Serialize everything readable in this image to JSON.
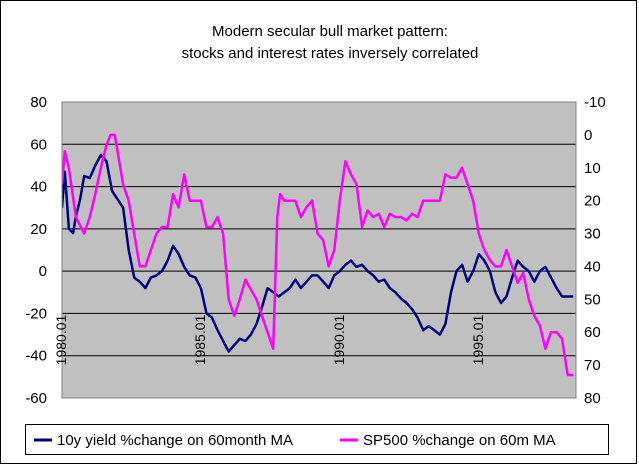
{
  "chart_data": {
    "type": "line",
    "title": [
      "Modern secular bull market pattern:",
      "stocks and interest rates inversely correlated"
    ],
    "x_tick_labels": [
      "1980.01",
      "1985.01",
      "1990.01",
      "1995.01"
    ],
    "x_range": [
      1980.0,
      1998.5
    ],
    "x_tick_positions": [
      1980.0,
      1985.0,
      1990.0,
      1995.0
    ],
    "y_left": {
      "ylim": [
        -60,
        80
      ],
      "ticks": [
        -60,
        -40,
        -20,
        0,
        20,
        40,
        60,
        80
      ],
      "tick_labels": [
        "-60",
        "-40",
        "-20",
        "0",
        "20",
        "40",
        "60",
        "80"
      ]
    },
    "y_right": {
      "ylim": [
        80,
        -10
      ],
      "inverted": true,
      "ticks": [
        -10,
        0,
        10,
        20,
        30,
        40,
        50,
        60,
        70,
        80
      ],
      "tick_labels": [
        "-10",
        "0",
        "10",
        "20",
        "30",
        "40",
        "50",
        "60",
        "70",
        "80"
      ]
    },
    "plot_background": "#c0c0c0",
    "grid": "horizontal",
    "legend_position": "bottom",
    "series": [
      {
        "name": "10y yield %change on 60month MA",
        "axis": "left",
        "color": "#000080",
        "x": [
          1980.0,
          1980.1,
          1980.25,
          1980.4,
          1980.5,
          1980.65,
          1980.8,
          1981.0,
          1981.2,
          1981.4,
          1981.6,
          1981.8,
          1982.0,
          1982.2,
          1982.4,
          1982.6,
          1982.8,
          1983.0,
          1983.2,
          1983.4,
          1983.6,
          1983.8,
          1984.0,
          1984.2,
          1984.4,
          1984.6,
          1984.8,
          1985.0,
          1985.2,
          1985.4,
          1985.6,
          1985.8,
          1986.0,
          1986.2,
          1986.4,
          1986.6,
          1986.8,
          1987.0,
          1987.2,
          1987.4,
          1987.6,
          1987.8,
          1988.0,
          1988.2,
          1988.4,
          1988.6,
          1988.8,
          1989.0,
          1989.2,
          1989.4,
          1989.6,
          1989.8,
          1990.0,
          1990.2,
          1990.4,
          1990.6,
          1990.8,
          1991.0,
          1991.2,
          1991.4,
          1991.6,
          1991.8,
          1992.0,
          1992.2,
          1992.4,
          1992.6,
          1992.8,
          1993.0,
          1993.2,
          1993.4,
          1993.6,
          1993.8,
          1994.0,
          1994.2,
          1994.4,
          1994.6,
          1994.8,
          1995.0,
          1995.2,
          1995.4,
          1995.6,
          1995.8,
          1996.0,
          1996.2,
          1996.4,
          1996.6,
          1996.8,
          1997.0,
          1997.2,
          1997.4,
          1997.6,
          1997.8,
          1998.0,
          1998.2,
          1998.4
        ],
        "y": [
          30,
          47,
          20,
          18,
          26,
          34,
          45,
          44,
          50,
          55,
          52,
          38,
          34,
          30,
          10,
          -3,
          -5,
          -8,
          -3,
          -2,
          0,
          5,
          12,
          8,
          2,
          -2,
          -3,
          -8,
          -20,
          -22,
          -28,
          -33,
          -38,
          -35,
          -32,
          -33,
          -30,
          -25,
          -17,
          -8,
          -10,
          -12,
          -10,
          -8,
          -4,
          -8,
          -5,
          -2,
          -2,
          -5,
          -8,
          -2,
          0,
          3,
          5,
          2,
          3,
          0,
          -2,
          -5,
          -4,
          -8,
          -10,
          -13,
          -15,
          -18,
          -22,
          -28,
          -26,
          -28,
          -30,
          -25,
          -10,
          0,
          3,
          -5,
          0,
          8,
          5,
          0,
          -10,
          -15,
          -12,
          -3,
          5,
          2,
          0,
          -5,
          0,
          2,
          -3,
          -8,
          -12,
          -12,
          -12
        ]
      },
      {
        "name": "SP500 %change on 60m MA",
        "axis": "right",
        "color": "#ff00ff",
        "x": [
          1980.0,
          1980.1,
          1980.25,
          1980.5,
          1980.8,
          1981.0,
          1981.2,
          1981.4,
          1981.6,
          1981.75,
          1981.9,
          1982.0,
          1982.2,
          1982.4,
          1982.6,
          1982.8,
          1983.0,
          1983.2,
          1983.4,
          1983.6,
          1983.8,
          1984.0,
          1984.2,
          1984.4,
          1984.6,
          1984.8,
          1985.0,
          1985.2,
          1985.4,
          1985.6,
          1985.8,
          1986.0,
          1986.2,
          1986.4,
          1986.6,
          1986.8,
          1987.0,
          1987.2,
          1987.4,
          1987.6,
          1987.75,
          1987.85,
          1988.0,
          1988.2,
          1988.4,
          1988.6,
          1988.8,
          1989.0,
          1989.2,
          1989.4,
          1989.6,
          1989.8,
          1990.0,
          1990.2,
          1990.4,
          1990.6,
          1990.8,
          1991.0,
          1991.2,
          1991.4,
          1991.6,
          1991.8,
          1992.0,
          1992.2,
          1992.4,
          1992.6,
          1992.8,
          1993.0,
          1993.2,
          1993.4,
          1993.6,
          1993.8,
          1994.0,
          1994.2,
          1994.4,
          1994.6,
          1994.8,
          1995.0,
          1995.2,
          1995.4,
          1995.6,
          1995.8,
          1996.0,
          1996.2,
          1996.4,
          1996.6,
          1996.8,
          1997.0,
          1997.2,
          1997.4,
          1997.6,
          1997.8,
          1998.0,
          1998.2,
          1998.4
        ],
        "y": [
          15,
          5,
          10,
          25,
          30,
          25,
          18,
          10,
          3,
          0,
          0,
          5,
          15,
          20,
          30,
          40,
          40,
          35,
          30,
          28,
          28,
          18,
          22,
          12,
          20,
          20,
          20,
          28,
          28,
          25,
          30,
          50,
          55,
          50,
          44,
          47,
          50,
          55,
          60,
          65,
          25,
          18,
          20,
          20,
          20,
          25,
          22,
          20,
          30,
          32,
          40,
          35,
          20,
          8,
          12,
          15,
          28,
          23,
          25,
          24,
          28,
          24,
          25,
          25,
          26,
          24,
          25,
          20,
          20,
          20,
          20,
          12,
          13,
          13,
          10,
          15,
          20,
          30,
          35,
          38,
          40,
          40,
          35,
          40,
          45,
          42,
          50,
          55,
          58,
          65,
          60,
          60,
          62,
          73,
          73
        ]
      }
    ]
  }
}
